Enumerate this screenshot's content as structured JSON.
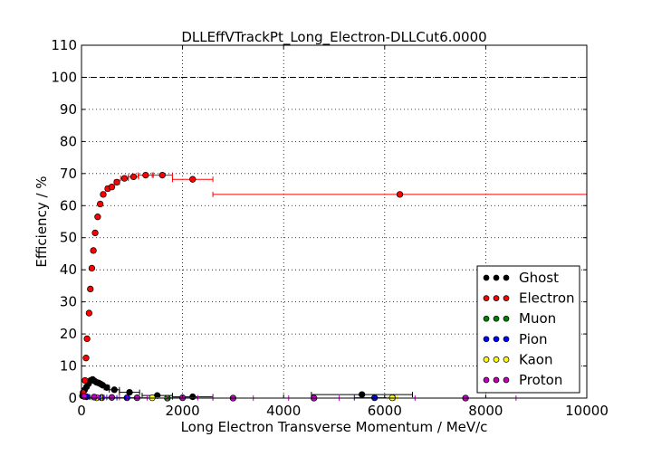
{
  "chart_data": {
    "type": "scatter",
    "title": "DLLEffVTrackPt_Long_Electron-DLLCut6.0000",
    "xlabel": "Long Electron Transverse Momentum / MeV/c",
    "ylabel": "Efficiency / %",
    "xlim": [
      0,
      10000
    ],
    "ylim": [
      0,
      110
    ],
    "xticks": [
      0,
      2000,
      4000,
      6000,
      8000,
      10000
    ],
    "yticks": [
      0,
      10,
      20,
      30,
      40,
      50,
      60,
      70,
      80,
      90,
      100,
      110
    ],
    "grid": true,
    "reference_line": 100,
    "legend_position": "lower-right",
    "series": [
      {
        "name": "Ghost",
        "color": "#000000",
        "points": [
          {
            "x": 20,
            "y": 0.7,
            "xerr": 20
          },
          {
            "x": 60,
            "y": 2.5,
            "xerr": 20
          },
          {
            "x": 100,
            "y": 3.5,
            "xerr": 20
          },
          {
            "x": 140,
            "y": 4.5,
            "xerr": 20
          },
          {
            "x": 180,
            "y": 5.5,
            "xerr": 20
          },
          {
            "x": 220,
            "y": 5.8,
            "xerr": 20
          },
          {
            "x": 260,
            "y": 5.3,
            "xerr": 20
          },
          {
            "x": 300,
            "y": 4.9,
            "xerr": 20
          },
          {
            "x": 340,
            "y": 4.7,
            "xerr": 20
          },
          {
            "x": 380,
            "y": 4.4,
            "xerr": 20
          },
          {
            "x": 420,
            "y": 4.0,
            "xerr": 20
          },
          {
            "x": 500,
            "y": 3.3,
            "xerr": 50
          },
          {
            "x": 650,
            "y": 2.6,
            "xerr": 100
          },
          {
            "x": 950,
            "y": 1.8,
            "xerr": 200
          },
          {
            "x": 1500,
            "y": 0.8,
            "xerr": 300
          },
          {
            "x": 2200,
            "y": 0.4,
            "xerr": 400
          },
          {
            "x": 5550,
            "y": 1.1,
            "xerr": 1000
          }
        ]
      },
      {
        "name": "Electron",
        "color": "#ff0000",
        "points": [
          {
            "x": 30,
            "y": 1.7,
            "xerr": 20
          },
          {
            "x": 70,
            "y": 5.5,
            "xerr": 20
          },
          {
            "x": 90,
            "y": 12.5,
            "xerr": 10
          },
          {
            "x": 110,
            "y": 18.5,
            "xerr": 10
          },
          {
            "x": 150,
            "y": 26.5,
            "xerr": 15
          },
          {
            "x": 175,
            "y": 34.0,
            "xerr": 15
          },
          {
            "x": 205,
            "y": 40.5,
            "xerr": 15
          },
          {
            "x": 235,
            "y": 46.0,
            "xerr": 15
          },
          {
            "x": 270,
            "y": 51.5,
            "xerr": 20
          },
          {
            "x": 320,
            "y": 56.5,
            "xerr": 25
          },
          {
            "x": 370,
            "y": 60.5,
            "xerr": 25
          },
          {
            "x": 430,
            "y": 63.5,
            "xerr": 30
          },
          {
            "x": 520,
            "y": 65.3,
            "xerr": 40
          },
          {
            "x": 600,
            "y": 65.8,
            "xerr": 40
          },
          {
            "x": 700,
            "y": 67.3,
            "xerr": 50
          },
          {
            "x": 850,
            "y": 68.5,
            "xerr": 75
          },
          {
            "x": 1030,
            "y": 69.0,
            "xerr": 100
          },
          {
            "x": 1270,
            "y": 69.5,
            "xerr": 150
          },
          {
            "x": 1600,
            "y": 69.5,
            "xerr": 200
          },
          {
            "x": 2200,
            "y": 68.2,
            "xerr": 400
          },
          {
            "x": 6300,
            "y": 63.5,
            "xerr": 3700
          }
        ]
      },
      {
        "name": "Muon",
        "color": "#008000",
        "points": [
          {
            "x": 400,
            "y": 0.1,
            "xerr": 200
          },
          {
            "x": 1700,
            "y": 0.0,
            "xerr": 300
          }
        ]
      },
      {
        "name": "Pion",
        "color": "#0000ff",
        "points": [
          {
            "x": 100,
            "y": 0.4,
            "xerr": 50
          },
          {
            "x": 400,
            "y": 0.2,
            "xerr": 100
          },
          {
            "x": 900,
            "y": 0.1,
            "xerr": 200
          },
          {
            "x": 5800,
            "y": 0.1,
            "xerr": 400
          }
        ]
      },
      {
        "name": "Kaon",
        "color": "#ffff00",
        "points": [
          {
            "x": 300,
            "y": 0.1,
            "xerr": 100
          },
          {
            "x": 1400,
            "y": 0.1,
            "xerr": 300
          },
          {
            "x": 6150,
            "y": 0.1,
            "xerr": 100
          }
        ]
      },
      {
        "name": "Proton",
        "color": "#bf00bf",
        "points": [
          {
            "x": 50,
            "y": 0.5,
            "xerr": 30
          },
          {
            "x": 250,
            "y": 0.3,
            "xerr": 80
          },
          {
            "x": 600,
            "y": 0.2,
            "xerr": 150
          },
          {
            "x": 1100,
            "y": 0.1,
            "xerr": 200
          },
          {
            "x": 2000,
            "y": 0.1,
            "xerr": 300
          },
          {
            "x": 3000,
            "y": 0.0,
            "xerr": 400
          },
          {
            "x": 4600,
            "y": 0.0,
            "xerr": 500
          },
          {
            "x": 7600,
            "y": 0.0,
            "xerr": 1000
          }
        ]
      }
    ]
  }
}
